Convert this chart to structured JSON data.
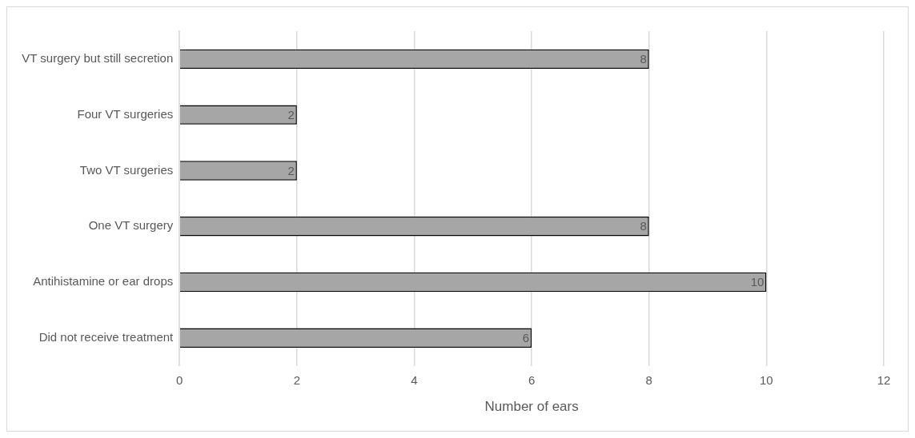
{
  "chart_data": {
    "type": "bar",
    "orientation": "horizontal",
    "xlabel": "Number of ears",
    "categories": [
      "VT surgery but still secretion",
      "Four VT surgeries",
      "Two VT surgeries",
      "One VT surgery",
      "Antihistamine or ear drops",
      "Did not receive treatment"
    ],
    "values": [
      8,
      2,
      2,
      8,
      10,
      6
    ],
    "color": "#a6a6a6",
    "xlim": [
      0,
      12
    ],
    "xticks": [
      0,
      2,
      4,
      6,
      8,
      10,
      12
    ],
    "grid": "x",
    "data_labels": true,
    "legend": false
  }
}
